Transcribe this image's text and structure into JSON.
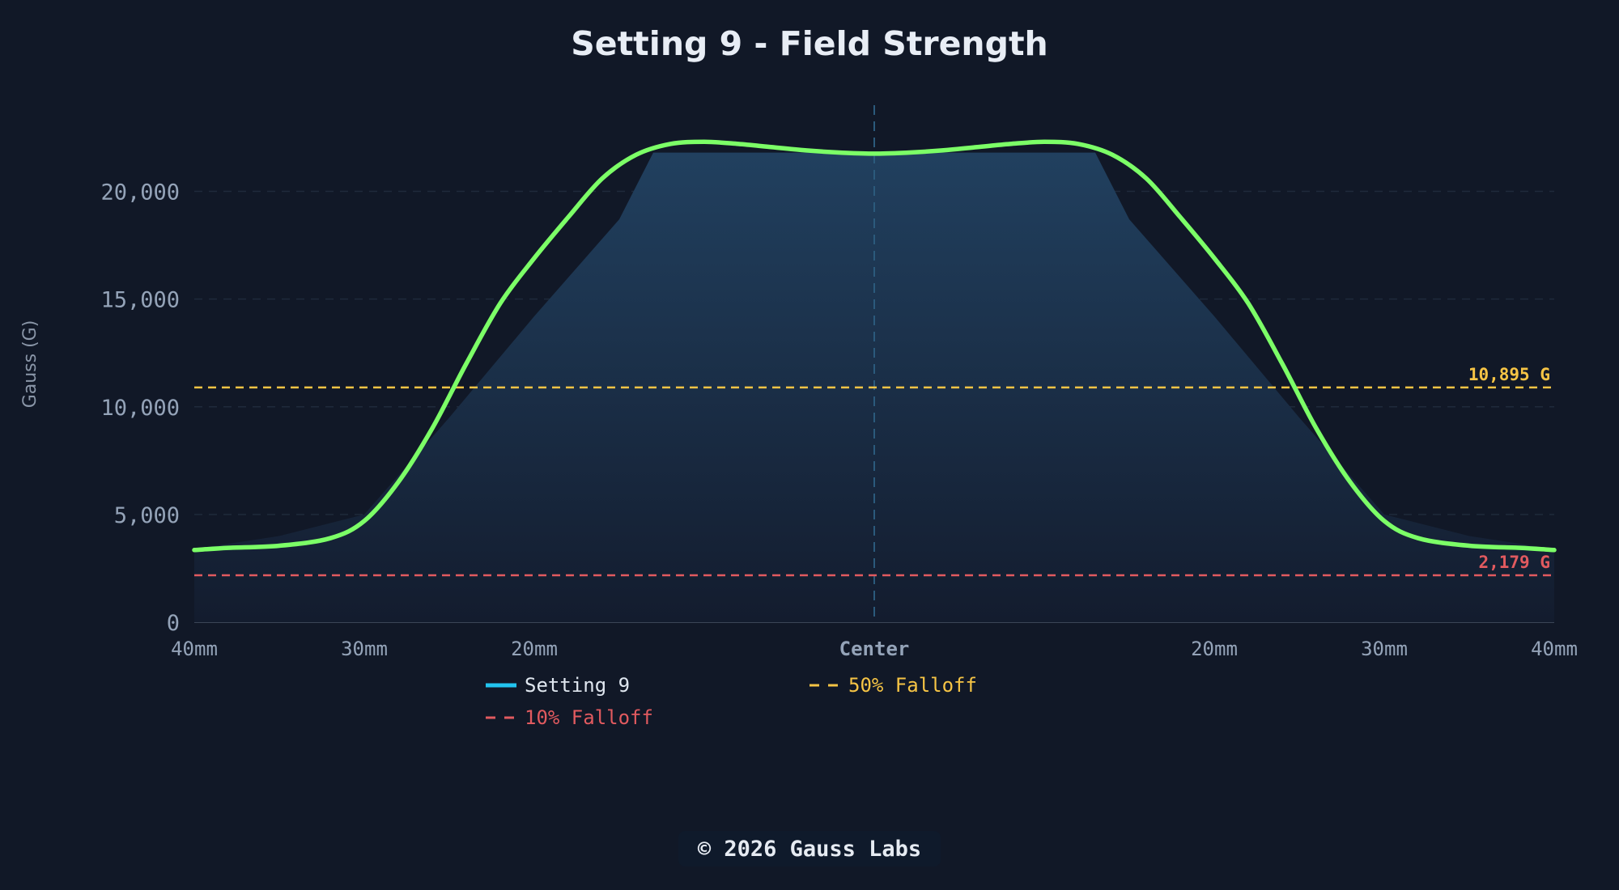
{
  "chart_data": {
    "type": "area",
    "title": "Setting 9 - Field Strength",
    "ylabel": "Gauss (G)",
    "xlabel": "",
    "ylim": [
      0,
      24000
    ],
    "xlim": [
      -40,
      40
    ],
    "x_unit": "mm",
    "yticks": [
      {
        "value": 0,
        "label": "0"
      },
      {
        "value": 5000,
        "label": "5,000"
      },
      {
        "value": 10000,
        "label": "10,000"
      },
      {
        "value": 15000,
        "label": "15,000"
      },
      {
        "value": 20000,
        "label": "20,000"
      }
    ],
    "xticks": [
      {
        "value": -40,
        "label": "40mm"
      },
      {
        "value": -30,
        "label": "30mm"
      },
      {
        "value": -20,
        "label": "20mm"
      },
      {
        "value": 0,
        "label": "Center"
      },
      {
        "value": 20,
        "label": "20mm"
      },
      {
        "value": 30,
        "label": "30mm"
      },
      {
        "value": 40,
        "label": "40mm"
      }
    ],
    "grid": true,
    "center_line": true,
    "series": [
      {
        "name": "Setting 9",
        "color": "#7cff67",
        "x": [
          -40,
          -38,
          -35,
          -32,
          -30,
          -28,
          -26,
          -24,
          -22,
          -20,
          -18,
          -16,
          -14,
          -12,
          -10,
          -8,
          -6,
          -4,
          -2,
          0,
          2,
          4,
          6,
          8,
          10,
          12,
          14,
          16,
          18,
          20,
          22,
          24,
          26,
          28,
          30,
          32,
          35,
          38,
          40
        ],
        "y": [
          3350,
          3450,
          3550,
          3900,
          4700,
          6500,
          9000,
          12000,
          14800,
          16900,
          18800,
          20600,
          21700,
          22200,
          22300,
          22200,
          22050,
          21900,
          21800,
          21750,
          21800,
          21900,
          22050,
          22200,
          22300,
          22200,
          21700,
          20600,
          18800,
          16900,
          14800,
          12000,
          9000,
          6500,
          4700,
          3900,
          3550,
          3450,
          3350
        ]
      }
    ],
    "area_fill": {
      "x": [
        -40,
        -35,
        -30,
        -25,
        -20,
        -15,
        -13,
        -10,
        -5,
        0,
        5,
        10,
        13,
        15,
        20,
        25,
        30,
        35,
        40
      ],
      "y": [
        3400,
        4000,
        5000,
        9500,
        14200,
        18700,
        21800,
        21800,
        21800,
        21800,
        21800,
        21800,
        21800,
        18700,
        14200,
        9500,
        5000,
        4000,
        3400
      ]
    },
    "reference_lines": [
      {
        "name": "50% Falloff",
        "value": 10895,
        "label": "10,895 G",
        "color": "#f6c445"
      },
      {
        "name": "10% Falloff",
        "value": 2179,
        "label": "2,179 G",
        "color": "#e15a5f"
      }
    ],
    "legend": {
      "position": "bottom",
      "entries": [
        {
          "label": "Setting 9",
          "color": "#22c4f0",
          "style": "solid"
        },
        {
          "label": "50% Falloff",
          "color": "#f6c445",
          "style": "dashed"
        },
        {
          "label": "10% Falloff",
          "color": "#e15a5f",
          "style": "dashed"
        }
      ]
    }
  },
  "footer": {
    "text": "© 2026 Gauss Labs"
  },
  "colors": {
    "background": "#111827",
    "center_tick": "#22c4f0",
    "tick_text": "#94a3b8"
  }
}
